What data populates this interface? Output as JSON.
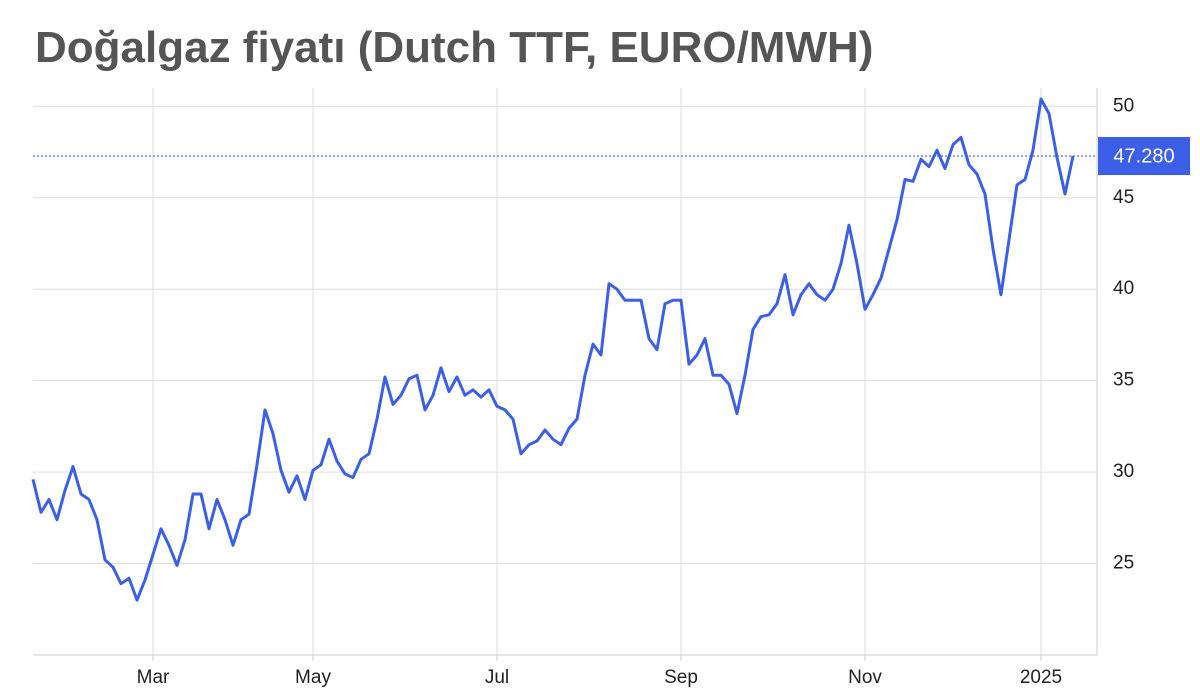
{
  "chart_data": {
    "type": "line",
    "title": "Doğalgaz fiyatı (Dutch TTF, EURO/MWH)",
    "categories": [
      null,
      null,
      null,
      null,
      null,
      null,
      null,
      null,
      null,
      null,
      null,
      null,
      null,
      null,
      null,
      "Mar",
      null,
      null,
      null,
      null,
      null,
      null,
      null,
      null,
      null,
      null,
      null,
      null,
      null,
      null,
      null,
      null,
      null,
      null,
      null,
      "May",
      null,
      null,
      null,
      null,
      null,
      null,
      null,
      null,
      null,
      null,
      null,
      null,
      null,
      null,
      null,
      null,
      null,
      null,
      null,
      null,
      null,
      null,
      "Jul",
      null,
      null,
      null,
      null,
      null,
      null,
      null,
      null,
      null,
      null,
      null,
      null,
      null,
      null,
      null,
      null,
      null,
      null,
      null,
      null,
      null,
      null,
      "Sep",
      null,
      null,
      null,
      null,
      null,
      null,
      null,
      null,
      null,
      null,
      null,
      null,
      null,
      null,
      null,
      null,
      null,
      null,
      null,
      null,
      null,
      null,
      "Nov",
      null,
      null,
      null,
      null,
      null,
      null,
      null,
      null,
      null,
      null,
      null,
      null,
      null,
      null,
      null,
      null,
      null,
      null,
      null,
      null,
      null,
      "2025",
      null,
      null,
      null,
      null
    ],
    "values": [
      29.6,
      27.8,
      28.5,
      27.4,
      29.0,
      30.3,
      28.8,
      28.5,
      27.4,
      25.2,
      24.8,
      23.9,
      24.2,
      23.0,
      24.1,
      25.5,
      26.9,
      26.0,
      24.9,
      26.3,
      28.8,
      28.8,
      26.9,
      28.5,
      27.4,
      26.0,
      27.4,
      27.7,
      30.4,
      33.4,
      32.1,
      30.1,
      28.9,
      29.8,
      28.5,
      30.1,
      30.4,
      31.8,
      30.6,
      29.9,
      29.7,
      30.7,
      31.0,
      32.9,
      35.2,
      33.7,
      34.2,
      35.1,
      35.3,
      33.4,
      34.2,
      35.7,
      34.4,
      35.2,
      34.2,
      34.5,
      34.1,
      34.5,
      33.6,
      33.4,
      32.9,
      31.0,
      31.5,
      31.7,
      32.3,
      31.8,
      31.5,
      32.4,
      32.9,
      35.3,
      37.0,
      36.4,
      40.3,
      40.0,
      39.4,
      39.4,
      39.4,
      37.3,
      36.7,
      39.2,
      39.4,
      39.4,
      35.9,
      36.4,
      37.3,
      35.3,
      35.3,
      34.8,
      33.2,
      35.3,
      37.8,
      38.5,
      38.6,
      39.2,
      40.8,
      38.6,
      39.7,
      40.3,
      39.7,
      39.4,
      40.0,
      41.4,
      43.5,
      41.4,
      38.9,
      39.7,
      40.6,
      42.2,
      43.8,
      46.0,
      45.9,
      47.1,
      46.7,
      47.6,
      46.6,
      47.9,
      48.3,
      46.8,
      46.3,
      45.2,
      42.2,
      39.7,
      42.7,
      45.7,
      46.0,
      47.6,
      50.4,
      49.6,
      47.2,
      45.2,
      47.28
    ],
    "color": "#3b5fe6",
    "current_value": {
      "value": 47.28,
      "label": "47.280"
    },
    "ylim": [
      20,
      51
    ],
    "yticks": [
      25,
      30,
      35,
      40,
      45,
      50
    ],
    "grid": true
  }
}
